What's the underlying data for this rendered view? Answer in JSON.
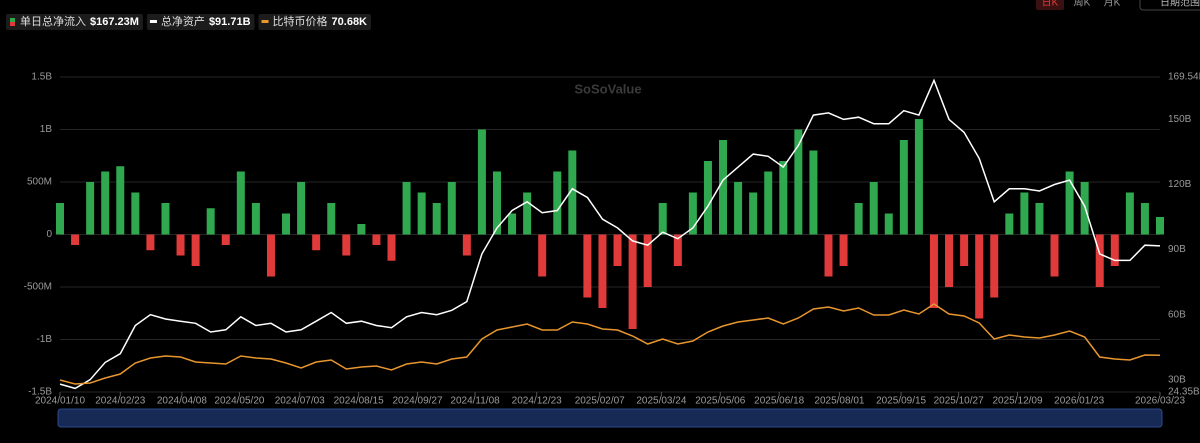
{
  "controls": {
    "periods": [
      "日K",
      "周K",
      "月K"
    ],
    "range": "日期范围"
  },
  "watermark": "SoSoValue",
  "chart_data": {
    "type": "bar-line",
    "x": [
      "2024/01/10",
      "2024/01/21",
      "2024/02/01",
      "2024/02/12",
      "2024/02/23",
      "2024/03/05",
      "2024/03/16",
      "2024/03/27",
      "2024/04/07",
      "2024/04/18",
      "2024/04/29",
      "2024/05/10",
      "2024/05/21",
      "2024/06/01",
      "2024/06/12",
      "2024/06/23",
      "2024/07/04",
      "2024/07/15",
      "2024/07/26",
      "2024/08/06",
      "2024/08/17",
      "2024/08/28",
      "2024/09/08",
      "2024/09/19",
      "2024/09/30",
      "2024/10/11",
      "2024/10/22",
      "2024/11/02",
      "2024/11/13",
      "2024/11/24",
      "2024/12/05",
      "2024/12/16",
      "2024/12/27",
      "2025/01/07",
      "2025/01/18",
      "2025/01/29",
      "2025/02/09",
      "2025/02/20",
      "2025/03/03",
      "2025/03/14",
      "2025/03/25",
      "2025/04/05",
      "2025/04/16",
      "2025/04/27",
      "2025/05/08",
      "2025/05/19",
      "2025/05/30",
      "2025/06/10",
      "2025/06/21",
      "2025/07/02",
      "2025/07/13",
      "2025/07/24",
      "2025/08/04",
      "2025/08/15",
      "2025/08/26",
      "2025/09/06",
      "2025/09/17",
      "2025/09/28",
      "2025/10/09",
      "2025/10/20",
      "2025/10/31",
      "2025/11/11",
      "2025/11/22",
      "2025/12/03",
      "2025/12/14",
      "2025/12/25",
      "2026/01/05",
      "2026/01/16",
      "2026/01/27",
      "2026/02/07",
      "2026/02/18",
      "2026/03/01",
      "2026/03/12",
      "2026/03/23"
    ],
    "xlim": [
      "2024/01/10",
      "2026/03/23"
    ],
    "xticks": [
      "2024/01/10",
      "2024/02/23",
      "2024/04/08",
      "2024/05/20",
      "2024/07/03",
      "2024/08/15",
      "2024/09/27",
      "2024/11/08",
      "2024/12/23",
      "2025/02/07",
      "2025/03/24",
      "2025/05/06",
      "2025/06/18",
      "2025/08/01",
      "2025/09/15",
      "2025/10/27",
      "2025/12/09",
      "2026/01/23",
      "2026/03/23"
    ],
    "ylim": [
      -1500,
      1500
    ],
    "yticks": [
      {
        "value": -1500,
        "label": "-1.5B"
      },
      {
        "value": -1000,
        "label": "-1B"
      },
      {
        "value": -500,
        "label": "-500M"
      },
      0,
      {
        "value": 500,
        "label": "500M"
      },
      {
        "value": 1000,
        "label": "1B"
      },
      {
        "value": 1500,
        "label": "1.5B"
      }
    ],
    "y2lim": [
      24.35,
      169.54
    ],
    "y2ticks": [
      {
        "value": 24.35,
        "label": "24.35B"
      },
      {
        "value": 30,
        "label": "30B"
      },
      {
        "value": 60,
        "label": "60B"
      },
      {
        "value": 90,
        "label": "90B"
      },
      {
        "value": 120,
        "label": "120B"
      },
      {
        "value": 150,
        "label": "150B"
      },
      {
        "value": 169.54,
        "label": "169.54B"
      }
    ],
    "y3lim": [
      34,
      349
    ],
    "grid": true,
    "series": [
      {
        "name": "单日总净流入",
        "latest_label": "$167.23M",
        "kind": "bar",
        "color": "#2fa84f",
        "negative_color": "#e03a3a",
        "values": [
          300,
          -100,
          500,
          600,
          650,
          400,
          -150,
          300,
          -200,
          -300,
          250,
          -100,
          600,
          300,
          -400,
          200,
          500,
          -150,
          300,
          -200,
          100,
          -100,
          -250,
          500,
          400,
          300,
          500,
          -200,
          1000,
          600,
          200,
          400,
          -400,
          600,
          800,
          -600,
          -700,
          -300,
          -900,
          -500,
          300,
          -300,
          400,
          700,
          900,
          500,
          400,
          600,
          700,
          1000,
          800,
          -400,
          -300,
          300,
          500,
          200,
          900,
          1100,
          -700,
          -500,
          -300,
          -800,
          -600,
          200,
          400,
          300,
          -400,
          600,
          500,
          -500,
          -300,
          400,
          300,
          167.23
        ]
      },
      {
        "name": "总净资产",
        "latest_label": "$91.71B",
        "kind": "line",
        "axis": "y2",
        "color": "#ffffff",
        "values": [
          28,
          26,
          30,
          38,
          42,
          55,
          60,
          58,
          57,
          56,
          52,
          53,
          59,
          55,
          56,
          52,
          53,
          57,
          61,
          56,
          57,
          55,
          54,
          59,
          61,
          60,
          62,
          66,
          88,
          100,
          108,
          112,
          107,
          108,
          118,
          114,
          104,
          100,
          94,
          92,
          98,
          95,
          100,
          110,
          122,
          128,
          134,
          133,
          128,
          138,
          152,
          153,
          150,
          151,
          148,
          148,
          154,
          152,
          168,
          150,
          144,
          132,
          112,
          118,
          118,
          117,
          120,
          122,
          110,
          88,
          85,
          85,
          92,
          91.71
        ]
      },
      {
        "name": "比特币价格",
        "latest_label": "70.68K",
        "kind": "line",
        "axis": "y3",
        "color": "#e8962e",
        "values": [
          46,
          42,
          43,
          48,
          52,
          63,
          68,
          70,
          69,
          64,
          63,
          62,
          70,
          68,
          67,
          63,
          58,
          64,
          66,
          57,
          59,
          60,
          56,
          62,
          64,
          62,
          67,
          69,
          87,
          96,
          99,
          102,
          96,
          96,
          104,
          102,
          97,
          96,
          90,
          82,
          87,
          82,
          85,
          94,
          100,
          104,
          106,
          108,
          102,
          108,
          117,
          119,
          115,
          118,
          111,
          111,
          116,
          112,
          122,
          112,
          110,
          103,
          87,
          91,
          89,
          88,
          91,
          95,
          89,
          69,
          67,
          66,
          71,
          70.68
        ]
      }
    ]
  }
}
